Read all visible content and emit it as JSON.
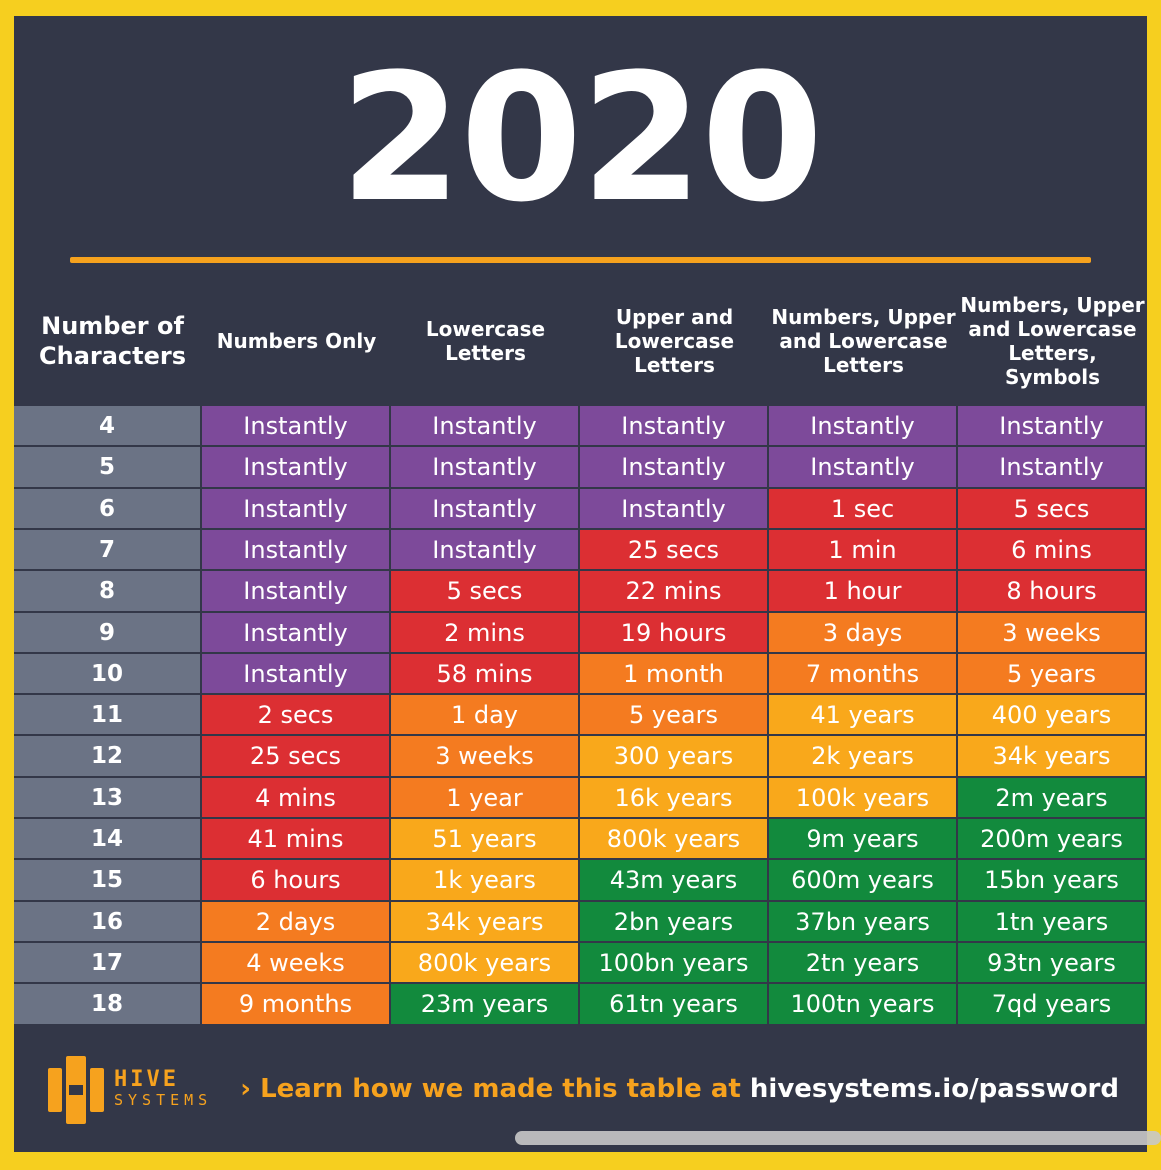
{
  "title": "2020",
  "chart_data": {
    "type": "table",
    "columns": [
      "Number of Characters",
      "Numbers Only",
      "Lowercase Letters",
      "Upper and Lowercase Letters",
      "Numbers, Upper and Lowercase Letters",
      "Numbers, Upper and Lowercase Letters, Symbols"
    ],
    "column_headers": [
      "Number of\nCharacters",
      "Numbers Only",
      "Lowercase\nLetters",
      "Upper and\nLowercase\nLetters",
      "Numbers, Upper\nand Lowercase\nLetters",
      "Numbers, Upper\nand Lowercase\nLetters, Symbols"
    ],
    "rows": [
      {
        "chars": "4",
        "values": [
          "Instantly",
          "Instantly",
          "Instantly",
          "Instantly",
          "Instantly"
        ],
        "colors": [
          "purple",
          "purple",
          "purple",
          "purple",
          "purple"
        ]
      },
      {
        "chars": "5",
        "values": [
          "Instantly",
          "Instantly",
          "Instantly",
          "Instantly",
          "Instantly"
        ],
        "colors": [
          "purple",
          "purple",
          "purple",
          "purple",
          "purple"
        ]
      },
      {
        "chars": "6",
        "values": [
          "Instantly",
          "Instantly",
          "Instantly",
          "1 sec",
          "5 secs"
        ],
        "colors": [
          "purple",
          "purple",
          "purple",
          "red",
          "red"
        ]
      },
      {
        "chars": "7",
        "values": [
          "Instantly",
          "Instantly",
          "25 secs",
          "1 min",
          "6 mins"
        ],
        "colors": [
          "purple",
          "purple",
          "red",
          "red",
          "red"
        ]
      },
      {
        "chars": "8",
        "values": [
          "Instantly",
          "5 secs",
          "22 mins",
          "1 hour",
          "8 hours"
        ],
        "colors": [
          "purple",
          "red",
          "red",
          "red",
          "red"
        ]
      },
      {
        "chars": "9",
        "values": [
          "Instantly",
          "2 mins",
          "19 hours",
          "3 days",
          "3 weeks"
        ],
        "colors": [
          "purple",
          "red",
          "red",
          "orange",
          "orange"
        ]
      },
      {
        "chars": "10",
        "values": [
          "Instantly",
          "58 mins",
          "1 month",
          "7 months",
          "5 years"
        ],
        "colors": [
          "purple",
          "red",
          "orange",
          "orange",
          "orange"
        ]
      },
      {
        "chars": "11",
        "values": [
          "2 secs",
          "1 day",
          "5 years",
          "41 years",
          "400 years"
        ],
        "colors": [
          "red",
          "orange",
          "orange",
          "yellow",
          "yellow"
        ]
      },
      {
        "chars": "12",
        "values": [
          "25 secs",
          "3 weeks",
          "300 years",
          "2k years",
          "34k years"
        ],
        "colors": [
          "red",
          "orange",
          "yellow",
          "yellow",
          "yellow"
        ]
      },
      {
        "chars": "13",
        "values": [
          "4 mins",
          "1 year",
          "16k years",
          "100k years",
          "2m years"
        ],
        "colors": [
          "red",
          "orange",
          "yellow",
          "yellow",
          "green"
        ]
      },
      {
        "chars": "14",
        "values": [
          "41 mins",
          "51 years",
          "800k years",
          "9m years",
          "200m years"
        ],
        "colors": [
          "red",
          "yellow",
          "yellow",
          "green",
          "green"
        ]
      },
      {
        "chars": "15",
        "values": [
          "6 hours",
          "1k years",
          "43m years",
          "600m years",
          "15bn years"
        ],
        "colors": [
          "red",
          "yellow",
          "green",
          "green",
          "green"
        ]
      },
      {
        "chars": "16",
        "values": [
          "2 days",
          "34k years",
          "2bn years",
          "37bn years",
          "1tn years"
        ],
        "colors": [
          "orange",
          "yellow",
          "green",
          "green",
          "green"
        ]
      },
      {
        "chars": "17",
        "values": [
          "4 weeks",
          "800k years",
          "100bn years",
          "2tn years",
          "93tn years"
        ],
        "colors": [
          "orange",
          "yellow",
          "green",
          "green",
          "green"
        ]
      },
      {
        "chars": "18",
        "values": [
          "9 months",
          "23m years",
          "61tn years",
          "100tn years",
          "7qd years"
        ],
        "colors": [
          "orange",
          "green",
          "green",
          "green",
          "green"
        ]
      }
    ],
    "color_scale": {
      "purple": "#7d4a9a",
      "red": "#dc2f33",
      "orange": "#f47b20",
      "yellow": "#f9a81b",
      "green": "#128a3d",
      "row_header": "#6b7385"
    }
  },
  "footer": {
    "brand_top": "HIVE",
    "brand_bottom": "SYSTEMS",
    "cta_arrow": "›",
    "cta_lead": "Learn how we made this table at",
    "cta_url": "hivesystems.io/password"
  },
  "colors": {
    "frame": "#f6cf1f",
    "panel": "#333748",
    "accent": "#f6a21e"
  },
  "icons": {
    "logo": "hive-hexagon-logo-icon"
  }
}
